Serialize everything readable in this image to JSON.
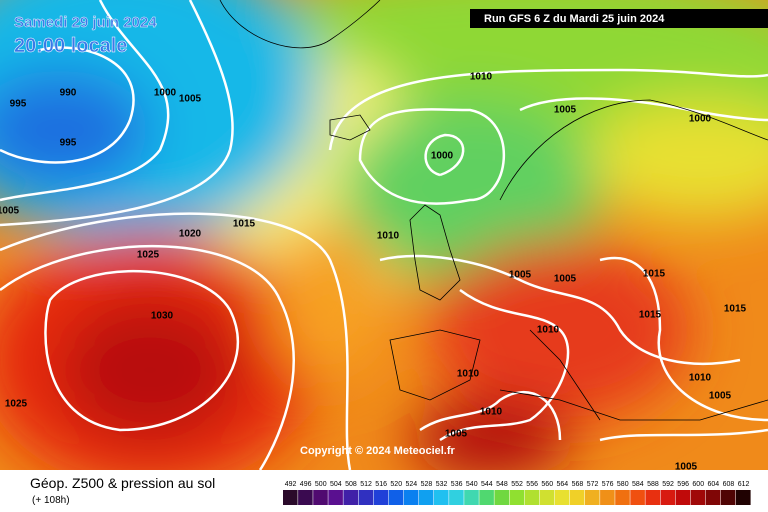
{
  "map": {
    "valid_date": "Samedi 29 juin 2024",
    "valid_time": "20:00 locale",
    "run_info": "Run GFS 6 Z du Mardi 25 juin 2024",
    "copyright": "Copyright © 2024 Meteociel.fr",
    "isobar_labels": [
      995,
      990,
      995,
      1000,
      1005,
      1005,
      1010,
      1005,
      1000,
      1000,
      1015,
      1020,
      1025,
      1010,
      1005,
      1005,
      1015,
      1015,
      1015,
      1030,
      1010,
      1010,
      1010,
      1005,
      1025,
      1010,
      1005,
      1005
    ]
  },
  "footer": {
    "title": "Géop. Z500 & pression au sol",
    "lead_time": "(+ 108h)",
    "legend_values": [
      492,
      496,
      500,
      504,
      508,
      512,
      516,
      520,
      524,
      528,
      532,
      536,
      540,
      544,
      548,
      552,
      556,
      560,
      564,
      568,
      572,
      576,
      580,
      584,
      588,
      592,
      596,
      600,
      604,
      608,
      612
    ]
  }
}
